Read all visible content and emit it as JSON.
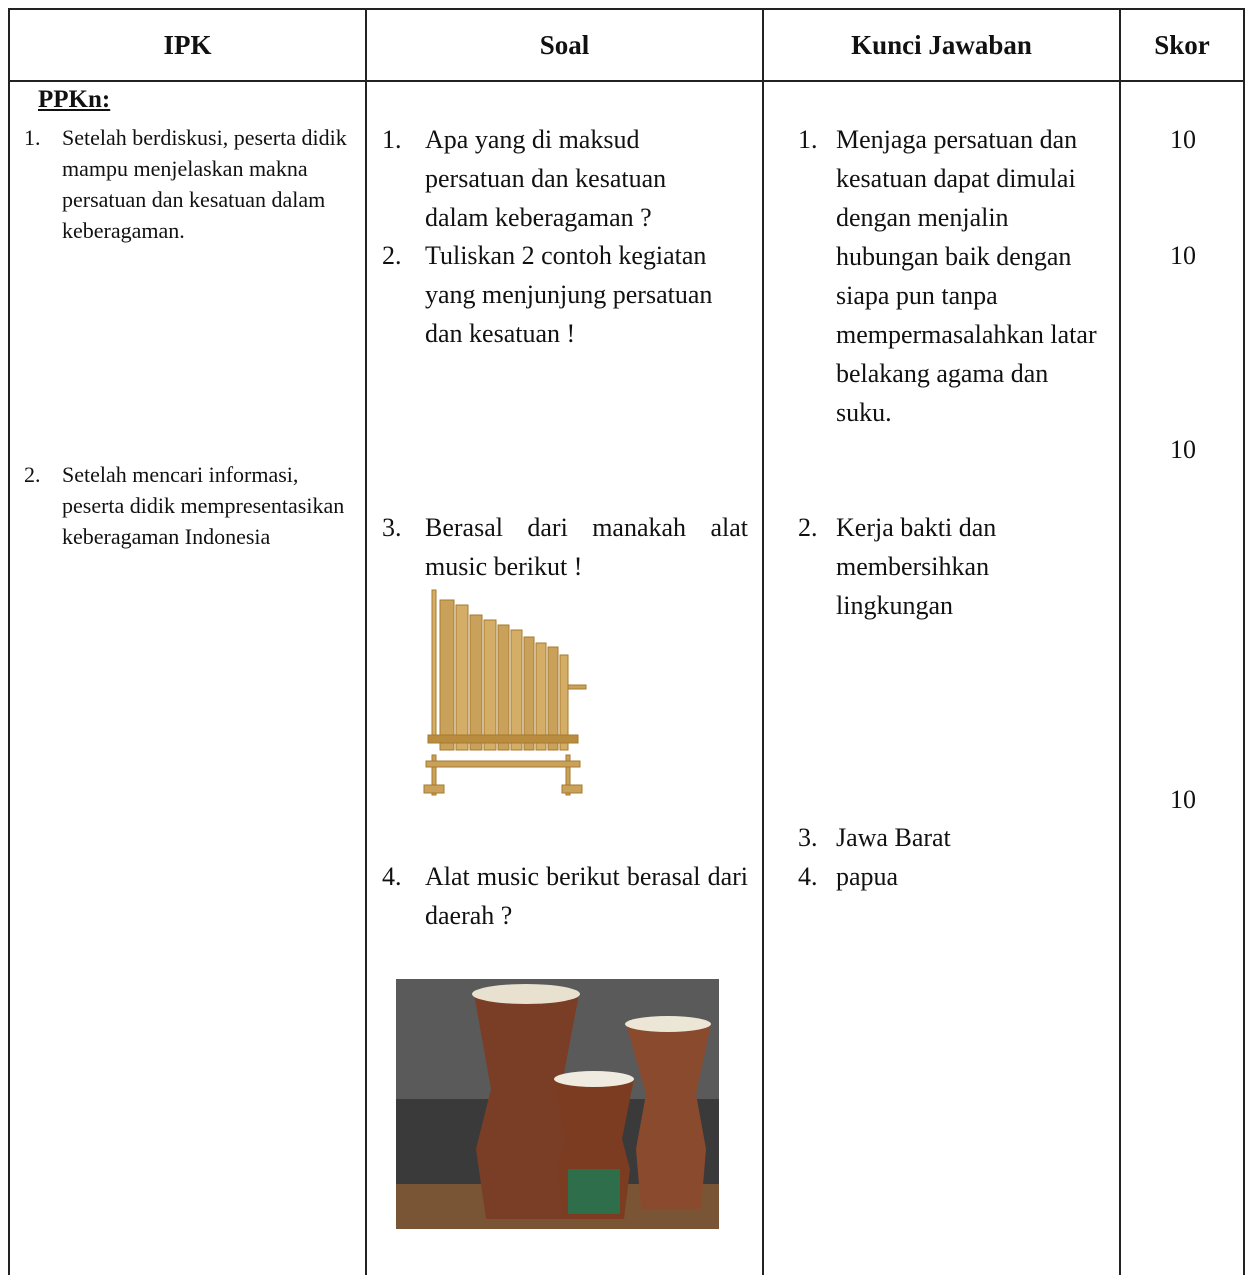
{
  "table": {
    "headers": [
      "IPK",
      "Soal",
      "Kunci Jawaban",
      "Skor"
    ],
    "ipk": {
      "subject": "PPKn:",
      "items": [
        {
          "number": "1.",
          "text": "Setelah berdiskusi, peserta didik mampu menjelaskan makna persatuan dan kesatuan dalam keberagaman."
        },
        {
          "number": "2.",
          "text": "Setelah mencari informasi, peserta didik mempresentasikan keberagaman Indonesia"
        }
      ]
    },
    "soal": [
      {
        "number": "1.",
        "text": "Apa yang di maksud persatuan dan kesatuan dalam keberagaman ?"
      },
      {
        "number": "2.",
        "text": "Tuliskan 2 contoh kegiatan yang menjunjung persatuan dan kesatuan !"
      },
      {
        "number": "3.",
        "text": "Berasal dari manakah alat music berikut !"
      },
      {
        "number": "4.",
        "text": "Alat music berikut berasal dari daerah ?"
      }
    ],
    "kunci": [
      {
        "number": "1.",
        "text": "Menjaga persatuan dan kesatuan dapat dimulai dengan menjalin hubungan baik dengan siapa pun tanpa mempermasalahkan latar belakang agama dan suku."
      },
      {
        "number": "2.",
        "text": "Kerja bakti dan membersihkan lingkungan"
      },
      {
        "number": "3.",
        "text": "Jawa Barat"
      },
      {
        "number": "4.",
        "text": "papua"
      }
    ],
    "skor": [
      "10",
      "10",
      "10",
      "10"
    ]
  }
}
